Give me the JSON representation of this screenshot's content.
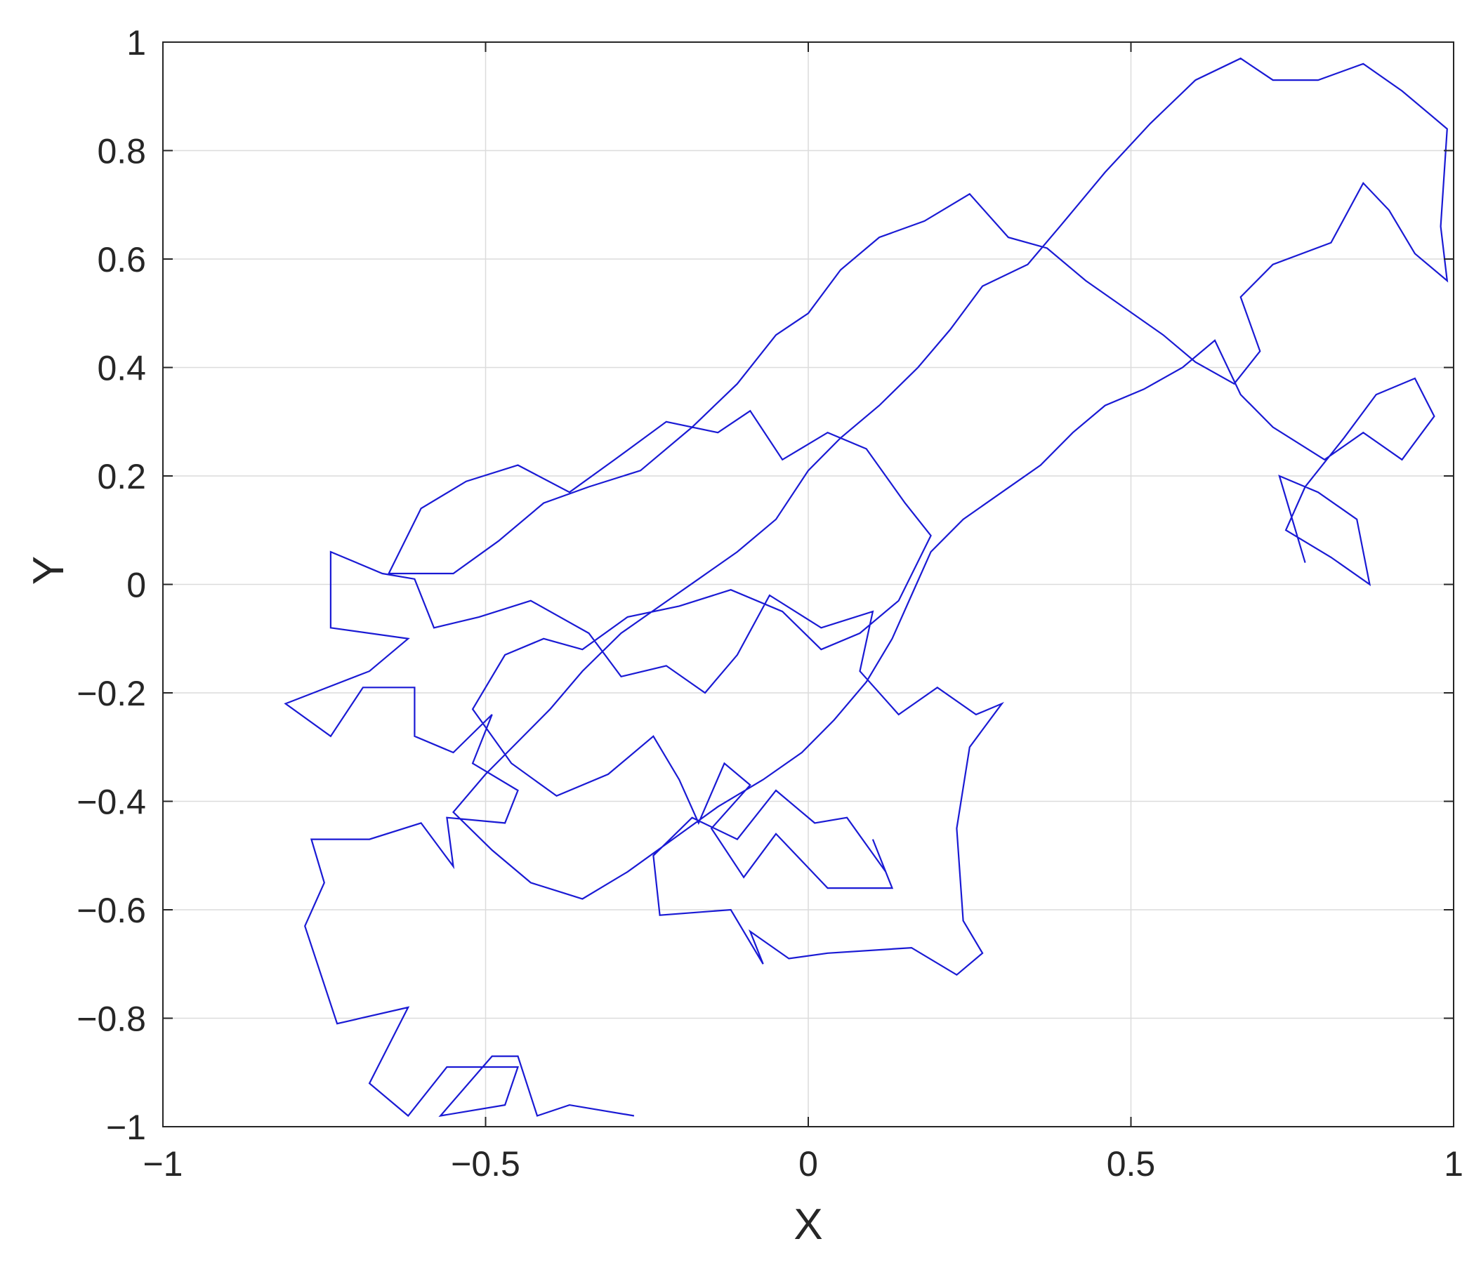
{
  "chart_data": {
    "type": "line",
    "title": "",
    "xlabel": "X",
    "ylabel": "Y",
    "xlim": [
      -1,
      1
    ],
    "ylim": [
      -1,
      1
    ],
    "x_ticks": [
      -1,
      -0.5,
      0,
      0.5,
      1
    ],
    "x_tick_labels": [
      "−1",
      "−0.5",
      "0",
      "0.5",
      "1"
    ],
    "y_ticks": [
      -1,
      -0.8,
      -0.6,
      -0.4,
      -0.2,
      0,
      0.2,
      0.4,
      0.6,
      0.8,
      1
    ],
    "y_tick_labels": [
      "−1",
      "−0.8",
      "−0.6",
      "−0.4",
      "−0.2",
      "0",
      "0.2",
      "0.4",
      "0.6",
      "0.8",
      "1"
    ],
    "grid": true,
    "legend": "none",
    "series": [
      {
        "color": "#1a1ad4",
        "points": [
          [
            -0.27,
            -0.98
          ],
          [
            -0.37,
            -0.96
          ],
          [
            -0.42,
            -0.98
          ],
          [
            -0.45,
            -0.87
          ],
          [
            -0.49,
            -0.87
          ],
          [
            -0.57,
            -0.98
          ],
          [
            -0.47,
            -0.96
          ],
          [
            -0.45,
            -0.89
          ],
          [
            -0.56,
            -0.89
          ],
          [
            -0.62,
            -0.98
          ],
          [
            -0.68,
            -0.92
          ],
          [
            -0.62,
            -0.78
          ],
          [
            -0.73,
            -0.81
          ],
          [
            -0.78,
            -0.63
          ],
          [
            -0.75,
            -0.55
          ],
          [
            -0.77,
            -0.47
          ],
          [
            -0.68,
            -0.47
          ],
          [
            -0.6,
            -0.44
          ],
          [
            -0.55,
            -0.52
          ],
          [
            -0.56,
            -0.43
          ],
          [
            -0.47,
            -0.44
          ],
          [
            -0.45,
            -0.38
          ],
          [
            -0.52,
            -0.33
          ],
          [
            -0.49,
            -0.24
          ],
          [
            -0.55,
            -0.31
          ],
          [
            -0.61,
            -0.28
          ],
          [
            -0.61,
            -0.19
          ],
          [
            -0.69,
            -0.19
          ],
          [
            -0.74,
            -0.28
          ],
          [
            -0.81,
            -0.22
          ],
          [
            -0.68,
            -0.16
          ],
          [
            -0.62,
            -0.1
          ],
          [
            -0.74,
            -0.08
          ],
          [
            -0.74,
            0.06
          ],
          [
            -0.66,
            0.02
          ],
          [
            -0.61,
            0.01
          ],
          [
            -0.58,
            -0.08
          ],
          [
            -0.51,
            -0.06
          ],
          [
            -0.43,
            -0.03
          ],
          [
            -0.34,
            -0.09
          ],
          [
            -0.29,
            -0.17
          ],
          [
            -0.22,
            -0.15
          ],
          [
            -0.16,
            -0.2
          ],
          [
            -0.11,
            -0.13
          ],
          [
            -0.06,
            -0.02
          ],
          [
            0.02,
            -0.08
          ],
          [
            0.1,
            -0.05
          ],
          [
            0.08,
            -0.16
          ],
          [
            0.14,
            -0.24
          ],
          [
            0.2,
            -0.19
          ],
          [
            0.26,
            -0.24
          ],
          [
            0.3,
            -0.22
          ],
          [
            0.25,
            -0.3
          ],
          [
            0.23,
            -0.45
          ],
          [
            0.24,
            -0.62
          ],
          [
            0.27,
            -0.68
          ],
          [
            0.23,
            -0.72
          ],
          [
            0.16,
            -0.67
          ],
          [
            0.03,
            -0.68
          ],
          [
            -0.03,
            -0.69
          ],
          [
            -0.09,
            -0.64
          ],
          [
            -0.07,
            -0.7
          ],
          [
            -0.12,
            -0.6
          ],
          [
            -0.23,
            -0.61
          ],
          [
            -0.24,
            -0.5
          ],
          [
            -0.18,
            -0.43
          ],
          [
            -0.11,
            -0.47
          ],
          [
            -0.05,
            -0.38
          ],
          [
            0.01,
            -0.44
          ],
          [
            0.06,
            -0.43
          ],
          [
            0.12,
            -0.53
          ],
          [
            0.1,
            -0.47
          ],
          [
            0.13,
            -0.56
          ],
          [
            0.03,
            -0.56
          ],
          [
            -0.05,
            -0.46
          ],
          [
            -0.1,
            -0.54
          ],
          [
            -0.15,
            -0.45
          ],
          [
            -0.09,
            -0.37
          ],
          [
            -0.13,
            -0.33
          ],
          [
            -0.17,
            -0.44
          ],
          [
            -0.2,
            -0.36
          ],
          [
            -0.24,
            -0.28
          ],
          [
            -0.31,
            -0.35
          ],
          [
            -0.39,
            -0.39
          ],
          [
            -0.46,
            -0.33
          ],
          [
            -0.52,
            -0.23
          ],
          [
            -0.47,
            -0.13
          ],
          [
            -0.41,
            -0.1
          ],
          [
            -0.35,
            -0.12
          ],
          [
            -0.28,
            -0.06
          ],
          [
            -0.2,
            -0.04
          ],
          [
            -0.12,
            -0.01
          ],
          [
            -0.04,
            -0.05
          ],
          [
            0.02,
            -0.12
          ],
          [
            0.08,
            -0.09
          ],
          [
            0.14,
            -0.03
          ],
          [
            0.19,
            0.09
          ],
          [
            0.15,
            0.15
          ],
          [
            0.09,
            0.25
          ],
          [
            0.03,
            0.28
          ],
          [
            -0.04,
            0.23
          ],
          [
            -0.09,
            0.32
          ],
          [
            -0.14,
            0.28
          ],
          [
            -0.22,
            0.3
          ],
          [
            -0.3,
            0.23
          ],
          [
            -0.37,
            0.17
          ],
          [
            -0.45,
            0.22
          ],
          [
            -0.53,
            0.19
          ],
          [
            -0.6,
            0.14
          ],
          [
            -0.65,
            0.02
          ],
          [
            -0.55,
            0.02
          ],
          [
            -0.48,
            0.08
          ],
          [
            -0.41,
            0.15
          ],
          [
            -0.34,
            0.18
          ],
          [
            -0.26,
            0.21
          ],
          [
            -0.18,
            0.29
          ],
          [
            -0.11,
            0.37
          ],
          [
            -0.05,
            0.46
          ],
          [
            0.0,
            0.5
          ],
          [
            0.05,
            0.58
          ],
          [
            0.11,
            0.64
          ],
          [
            0.18,
            0.67
          ],
          [
            0.25,
            0.72
          ],
          [
            0.31,
            0.64
          ],
          [
            0.37,
            0.62
          ],
          [
            0.43,
            0.56
          ],
          [
            0.49,
            0.51
          ],
          [
            0.55,
            0.46
          ],
          [
            0.6,
            0.41
          ],
          [
            0.66,
            0.37
          ],
          [
            0.7,
            0.43
          ],
          [
            0.67,
            0.53
          ],
          [
            0.72,
            0.59
          ],
          [
            0.81,
            0.63
          ],
          [
            0.86,
            0.74
          ],
          [
            0.9,
            0.69
          ],
          [
            0.94,
            0.61
          ],
          [
            0.99,
            0.56
          ],
          [
            0.98,
            0.66
          ],
          [
            0.99,
            0.84
          ],
          [
            0.92,
            0.91
          ],
          [
            0.86,
            0.96
          ],
          [
            0.79,
            0.93
          ],
          [
            0.72,
            0.93
          ],
          [
            0.67,
            0.97
          ],
          [
            0.6,
            0.93
          ],
          [
            0.53,
            0.85
          ],
          [
            0.46,
            0.76
          ],
          [
            0.39,
            0.66
          ],
          [
            0.34,
            0.59
          ],
          [
            0.27,
            0.55
          ],
          [
            0.22,
            0.47
          ],
          [
            0.17,
            0.4
          ],
          [
            0.11,
            0.33
          ],
          [
            0.05,
            0.27
          ],
          [
            0.0,
            0.21
          ],
          [
            -0.05,
            0.12
          ],
          [
            -0.11,
            0.06
          ],
          [
            -0.17,
            0.01
          ],
          [
            -0.23,
            -0.04
          ],
          [
            -0.29,
            -0.09
          ],
          [
            -0.35,
            -0.16
          ],
          [
            -0.4,
            -0.23
          ],
          [
            -0.45,
            -0.29
          ],
          [
            -0.5,
            -0.35
          ],
          [
            -0.55,
            -0.42
          ],
          [
            -0.49,
            -0.49
          ],
          [
            -0.43,
            -0.55
          ],
          [
            -0.35,
            -0.58
          ],
          [
            -0.28,
            -0.53
          ],
          [
            -0.21,
            -0.47
          ],
          [
            -0.14,
            -0.41
          ],
          [
            -0.07,
            -0.36
          ],
          [
            -0.01,
            -0.31
          ],
          [
            0.04,
            -0.25
          ],
          [
            0.09,
            -0.18
          ],
          [
            0.13,
            -0.1
          ],
          [
            0.16,
            -0.02
          ],
          [
            0.19,
            0.06
          ],
          [
            0.24,
            0.12
          ],
          [
            0.3,
            0.17
          ],
          [
            0.36,
            0.22
          ],
          [
            0.41,
            0.28
          ],
          [
            0.46,
            0.33
          ],
          [
            0.52,
            0.36
          ],
          [
            0.58,
            0.4
          ],
          [
            0.63,
            0.45
          ],
          [
            0.67,
            0.35
          ],
          [
            0.72,
            0.29
          ],
          [
            0.8,
            0.23
          ],
          [
            0.86,
            0.28
          ],
          [
            0.92,
            0.23
          ],
          [
            0.97,
            0.31
          ],
          [
            0.94,
            0.38
          ],
          [
            0.88,
            0.35
          ],
          [
            0.83,
            0.27
          ],
          [
            0.77,
            0.18
          ],
          [
            0.74,
            0.1
          ],
          [
            0.81,
            0.05
          ],
          [
            0.87,
            0.0
          ],
          [
            0.85,
            0.12
          ],
          [
            0.79,
            0.17
          ],
          [
            0.73,
            0.2
          ],
          [
            0.77,
            0.04
          ]
        ]
      }
    ]
  }
}
